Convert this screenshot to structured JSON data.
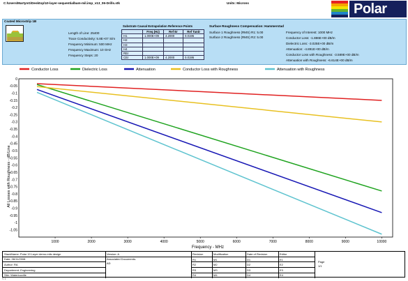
{
  "header": {
    "file_path": "C:\\Users\\MartynG\\Desktop\\10-layer-sequentialbam-mil.imp_v13_06-Drills.stk",
    "units": "Units: Microns",
    "logo_text": "Polar",
    "logo_colors": [
      "#e62121",
      "#f6a400",
      "#f4e300",
      "#63b32e",
      "#1e84c8",
      "#15205b"
    ]
  },
  "panel": {
    "model_title": "Coated Microstrip 1B",
    "params": [
      "Length of Line: 25400",
      "Trace Conductivity: 5.8E+07 S/m",
      "Frequency Minimum: 500 MHz",
      "Frequency Maximum: 10 GHz",
      "Frequency Steps: 20"
    ],
    "ref_title": "Substrate Causal Extrapolation Reference Points",
    "ref_headers": [
      "",
      "Freq (Hz)",
      "Ref Er",
      "Ref TanD"
    ],
    "ref_rows": [
      [
        "H1",
        "1.000E+09",
        "4.2000",
        "0.0195"
      ],
      [
        "H2",
        "",
        "",
        ""
      ],
      [
        "H3",
        "",
        "",
        ""
      ],
      [
        "H4",
        "",
        "",
        ""
      ],
      [
        "REr",
        "",
        "",
        ""
      ],
      [
        "CEr",
        "1.000E+09",
        "4.2000",
        "0.0195"
      ]
    ],
    "roughness_title": "Surface Roughness Compensation: Hammerstad",
    "roughness_lines": [
      "Surface 1 Roughness (RMS) R1: 5.00",
      "Surface 2 Roughness (RMS) R2: 5.00"
    ],
    "results": [
      "Frequency of Interest: 1000 MHz",
      "Conductor Loss: -1.886E+00 dB/m",
      "Dielectric Loss: -3.025E+00 dB/m",
      "Attenuation: -4.891E+00 dB/m",
      "Conductor Loss with Roughness: -3.589E+00 dB/m",
      "Attenuation with Roughness: -6.614E+00 dB/m"
    ]
  },
  "chart_data": {
    "type": "line",
    "xlabel": "Frequency - MHz",
    "ylabel": "All Losses with Roughness - dB/Line",
    "xlim": [
      0,
      10300
    ],
    "ylim": [
      -1.1,
      0
    ],
    "xticks": [
      1000,
      2000,
      3000,
      4000,
      5000,
      6000,
      7000,
      8000,
      9000,
      10000
    ],
    "yticks": [
      0,
      -0.05,
      -0.1,
      -0.15,
      -0.2,
      -0.25,
      -0.3,
      -0.35,
      -0.4,
      -0.45,
      -0.5,
      -0.55,
      -0.6,
      -0.65,
      -0.7,
      -0.75,
      -0.8,
      -0.85,
      -0.9,
      -0.95,
      -1,
      -1.05
    ],
    "ytick_labels": [
      "0",
      "-0.05",
      "-0.1",
      "-0.15",
      "-0.2",
      "-0.25",
      "-0.3",
      "-0.35",
      "-0.4",
      "-0.45",
      "-0.5",
      "-0.55",
      "-0.6",
      "-0.65",
      "-0.7",
      "-0.75",
      "-0.8",
      "-0.85",
      "-0.9",
      "-0.95",
      "-1",
      "-1.05"
    ],
    "grid": true,
    "legend_position": "top",
    "x": [
      500,
      10000
    ],
    "series": [
      {
        "name": "Conductor Loss",
        "color": "#e02020",
        "values": [
          -0.034,
          -0.15
        ]
      },
      {
        "name": "Dielectric Loss",
        "color": "#1fa31f",
        "values": [
          -0.04,
          -0.78
        ]
      },
      {
        "name": "Attenuation",
        "color": "#1616b4",
        "values": [
          -0.074,
          -0.93
        ]
      },
      {
        "name": "Conductor Loss with Roughness",
        "color": "#e8c020",
        "values": [
          -0.054,
          -0.3
        ]
      },
      {
        "name": "Attenuation with Roughness",
        "color": "#5ec3cf",
        "values": [
          -0.094,
          -1.08
        ]
      }
    ]
  },
  "footer": {
    "stack_name": "StackName: Polar 10 Layer demo-mils design",
    "date": "Date: 06/11/2008",
    "author": "Author: RA",
    "department": "Department: Engineering",
    "site": "Site: Waterlooville",
    "version": "Version: A",
    "assoc_docs": "Associated Documents:",
    "assoc_val": "AD",
    "revision_header": "Revision",
    "modification_header": "Modification",
    "date_rev_header": "Date of Revision",
    "editor_header": "Editor",
    "revisions": [
      "R1",
      "R2",
      "R3",
      "R4"
    ],
    "modifications": [
      "M1",
      "M2",
      "M3",
      "M4"
    ],
    "dates": [
      "D1",
      "D2",
      "D3",
      "D4"
    ],
    "editors": [
      "E1",
      "E2",
      "E3",
      "E4"
    ],
    "page_label": "Page",
    "page_value": "1/1",
    "under_mark": "© 1"
  }
}
